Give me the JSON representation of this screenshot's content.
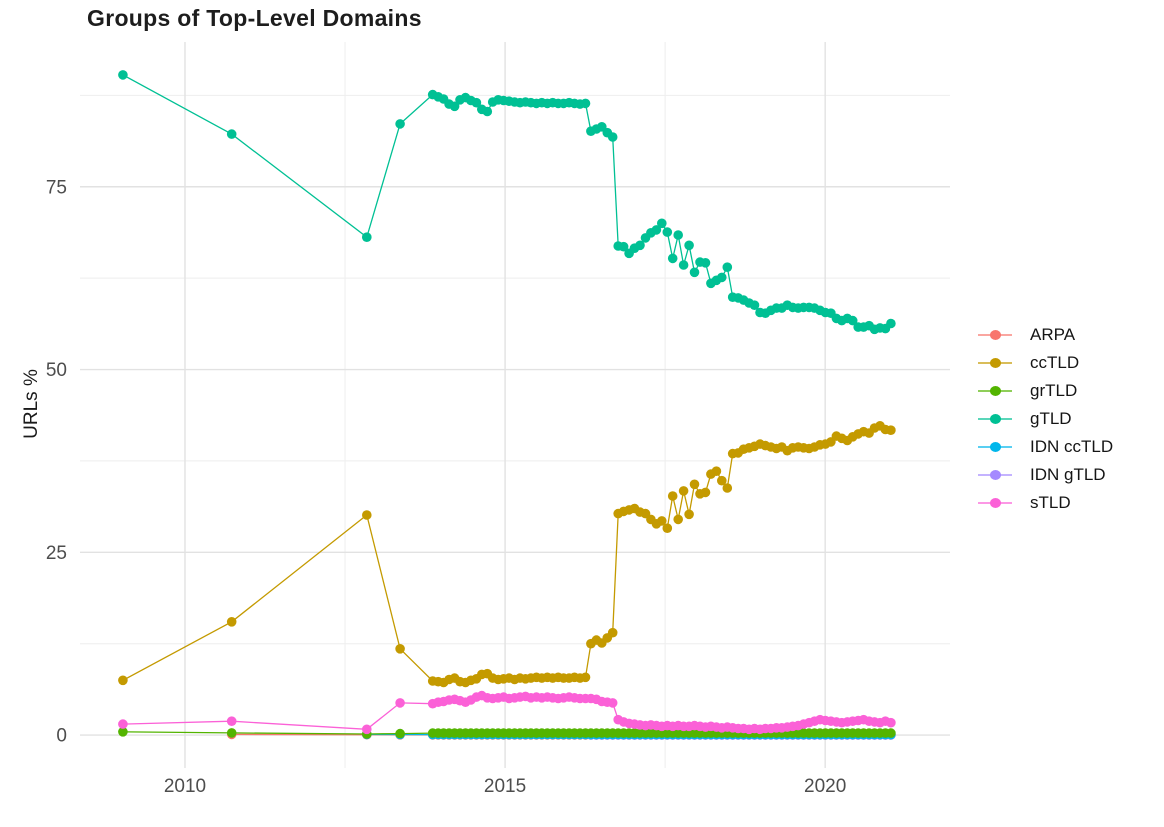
{
  "page": {
    "title": "Groups of Top-Level Domains"
  },
  "chart_data": {
    "type": "line",
    "title": "Groups of Top-Level Domains",
    "xlabel": "",
    "ylabel": "URLs %",
    "grid": true,
    "legend_position": "right",
    "marker": "circle",
    "x_ticks": [
      2010,
      2015,
      2020
    ],
    "x_minor_ticks": [
      2012.5,
      2017.5
    ],
    "y_ticks": [
      0,
      25,
      50,
      75
    ],
    "y_minor_ticks": [
      12.5,
      37.5,
      62.5,
      87.5
    ],
    "x_range": [
      2008.36,
      2021.95
    ],
    "y_range": [
      -4.5,
      94.8
    ],
    "colors": {
      "grid_major": "#e2e2e2",
      "grid_minor": "#eeeeee",
      "axis_text": "#4d4d4d",
      "title_text": "#1d1d1d"
    },
    "series": [
      {
        "name": "ARPA",
        "color": "#F8766D",
        "points_sparse": [
          [
            2010.73,
            0.1
          ],
          [
            2012.84,
            0.05
          ],
          [
            2013.36,
            0.04
          ]
        ],
        "monthly": {
          "from": 2013.87,
          "step": 0.0852,
          "count": 85,
          "fill": 0.03
        }
      },
      {
        "name": "ccTLD",
        "color": "#C49A00",
        "points_sparse": [
          [
            2009.03,
            7.5
          ],
          [
            2010.73,
            15.5
          ],
          [
            2012.84,
            30.1
          ],
          [
            2013.36,
            11.8
          ]
        ],
        "monthly": {
          "from": 2013.87,
          "step": 0.0852,
          "values": [
            7.4,
            7.3,
            7.2,
            7.6,
            7.8,
            7.3,
            7.2,
            7.5,
            7.7,
            8.3,
            8.4,
            7.8,
            7.6,
            7.7,
            7.8,
            7.6,
            7.8,
            7.7,
            7.8,
            7.9,
            7.8,
            7.9,
            7.8,
            7.9,
            7.8,
            7.8,
            7.9,
            7.8,
            7.9,
            12.5,
            13.0,
            12.6,
            13.3,
            14.0,
            30.3,
            30.6,
            30.8,
            31.0,
            30.5,
            30.3,
            29.5,
            28.9,
            29.3,
            28.3,
            32.7,
            29.5,
            33.4,
            30.2,
            34.3,
            33.0,
            33.2,
            35.7,
            36.1,
            34.8,
            33.8,
            38.5,
            38.6,
            39.1,
            39.3,
            39.5,
            39.8,
            39.6,
            39.4,
            39.2,
            39.4,
            38.9,
            39.3,
            39.4,
            39.3,
            39.2,
            39.4,
            39.7,
            39.8,
            40.1,
            40.9,
            40.6,
            40.3,
            40.8,
            41.2,
            41.5,
            41.3,
            42.0,
            42.3,
            41.8,
            41.7
          ]
        }
      },
      {
        "name": "grTLD",
        "color": "#53B400",
        "points_sparse": [
          [
            2009.03,
            0.45
          ],
          [
            2010.73,
            0.3
          ],
          [
            2012.84,
            0.15
          ],
          [
            2013.36,
            0.2
          ]
        ],
        "monthly": {
          "from": 2013.87,
          "step": 0.0852,
          "count": 85,
          "fill": 0.28
        }
      },
      {
        "name": "gTLD",
        "color": "#00C094",
        "points_sparse": [
          [
            2009.03,
            90.3
          ],
          [
            2010.73,
            82.2
          ],
          [
            2012.84,
            68.1
          ],
          [
            2013.36,
            83.6
          ]
        ],
        "monthly": {
          "from": 2013.87,
          "step": 0.0852,
          "values": [
            87.6,
            87.3,
            87.0,
            86.3,
            86.0,
            86.9,
            87.2,
            86.8,
            86.5,
            85.6,
            85.3,
            86.6,
            86.9,
            86.8,
            86.7,
            86.6,
            86.5,
            86.6,
            86.5,
            86.4,
            86.5,
            86.4,
            86.5,
            86.4,
            86.4,
            86.5,
            86.4,
            86.3,
            86.4,
            82.6,
            82.9,
            83.2,
            82.4,
            81.8,
            66.9,
            66.8,
            65.9,
            66.6,
            67.0,
            68.0,
            68.7,
            69.1,
            70.0,
            68.8,
            65.2,
            68.4,
            64.3,
            67.0,
            63.3,
            64.7,
            64.6,
            61.8,
            62.2,
            62.6,
            64.0,
            59.9,
            59.8,
            59.5,
            59.1,
            58.8,
            57.8,
            57.7,
            58.1,
            58.4,
            58.4,
            58.8,
            58.5,
            58.4,
            58.5,
            58.5,
            58.4,
            58.1,
            57.8,
            57.7,
            57.0,
            56.7,
            57.0,
            56.7,
            55.8,
            55.8,
            56.0,
            55.5,
            55.7,
            55.6,
            56.3
          ]
        }
      },
      {
        "name": "IDN ccTLD",
        "color": "#00B6EB",
        "points_sparse": [
          [
            2012.84,
            0.1
          ],
          [
            2013.36,
            0.08
          ]
        ],
        "monthly": {
          "from": 2013.87,
          "step": 0.0852,
          "count": 85,
          "fill": 0.07
        }
      },
      {
        "name": "IDN gTLD",
        "color": "#A58AFF",
        "points_sparse": [],
        "monthly": {
          "from": 2016.34,
          "step": 0.0852,
          "count": 56,
          "fill": 0.02
        }
      },
      {
        "name": "sTLD",
        "color": "#FB61D7",
        "points_sparse": [
          [
            2009.03,
            1.5
          ],
          [
            2010.73,
            1.9
          ],
          [
            2012.84,
            0.8
          ],
          [
            2013.36,
            4.4
          ]
        ],
        "monthly": {
          "from": 2013.87,
          "step": 0.0852,
          "values": [
            4.3,
            4.5,
            4.6,
            4.8,
            4.9,
            4.7,
            4.5,
            4.8,
            5.2,
            5.4,
            5.1,
            5.0,
            5.1,
            5.2,
            5.0,
            5.1,
            5.2,
            5.3,
            5.1,
            5.2,
            5.1,
            5.2,
            5.1,
            5.0,
            5.1,
            5.2,
            5.1,
            5.0,
            5.0,
            5.0,
            4.9,
            4.6,
            4.5,
            4.4,
            2.1,
            1.8,
            1.6,
            1.5,
            1.4,
            1.3,
            1.4,
            1.3,
            1.2,
            1.3,
            1.2,
            1.3,
            1.2,
            1.2,
            1.3,
            1.2,
            1.1,
            1.2,
            1.1,
            1.0,
            1.1,
            1.0,
            0.9,
            0.9,
            0.8,
            0.9,
            0.8,
            0.9,
            0.9,
            1.0,
            1.0,
            1.1,
            1.2,
            1.3,
            1.5,
            1.7,
            1.9,
            2.1,
            2.0,
            1.9,
            1.8,
            1.7,
            1.8,
            1.9,
            2.0,
            2.1,
            1.9,
            1.8,
            1.7,
            1.9,
            1.7
          ]
        }
      }
    ]
  }
}
